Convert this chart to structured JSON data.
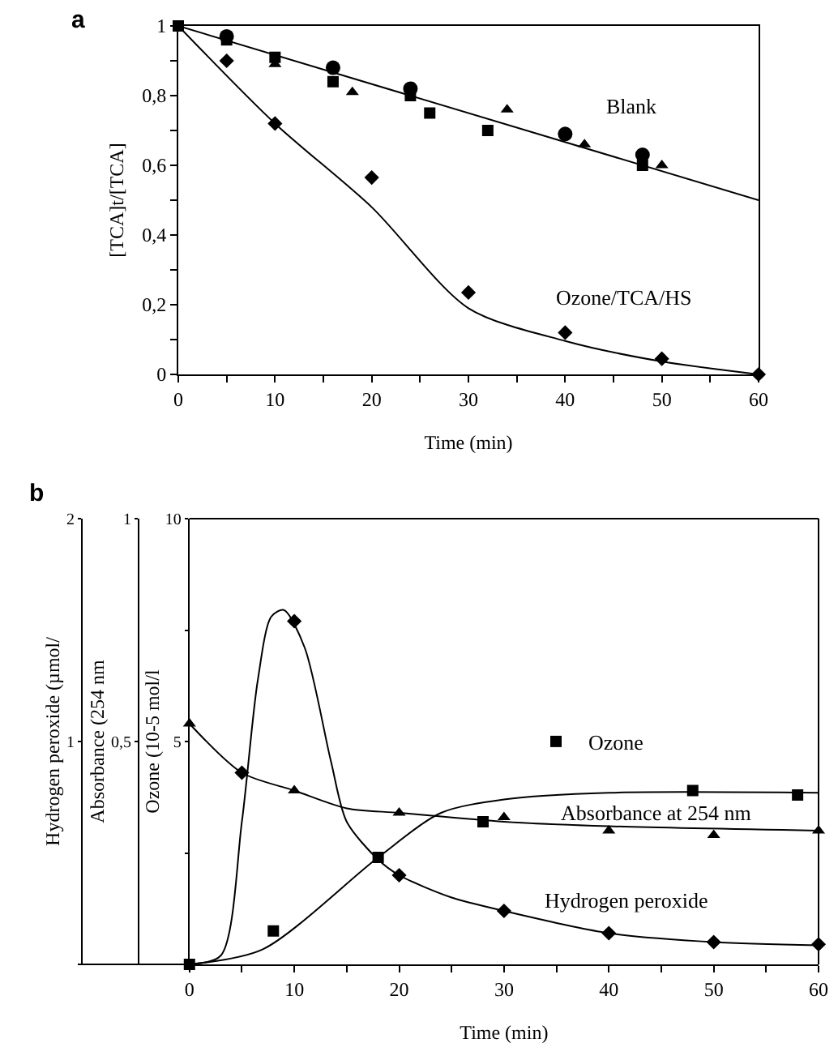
{
  "chart_data": [
    {
      "type": "scatter",
      "title": "a",
      "xlabel": "Time (min)",
      "ylabel": "[TCA]t/[TCA]",
      "xlim": [
        0,
        60
      ],
      "xticks": [
        0,
        {
          "value": 5,
          "label": null
        },
        10,
        {
          "value": 15,
          "label": null
        },
        20,
        {
          "value": 25,
          "label": null
        },
        30,
        {
          "value": 35,
          "label": null
        },
        40,
        {
          "value": 45,
          "label": null
        },
        50,
        {
          "value": 55,
          "label": null
        },
        60
      ],
      "ylim": [
        0,
        1
      ],
      "yticks": [
        0,
        {
          "value": 0.1,
          "label": null
        },
        {
          "value": 0.2,
          "label": "0,2"
        },
        {
          "value": 0.3,
          "label": null
        },
        {
          "value": 0.4,
          "label": "0,4"
        },
        {
          "value": 0.5,
          "label": null
        },
        {
          "value": 0.6,
          "label": "0,6"
        },
        {
          "value": 0.7,
          "label": null
        },
        {
          "value": 0.8,
          "label": "0,8"
        },
        {
          "value": 0.9,
          "label": null
        },
        1
      ],
      "grid": false,
      "legend": false,
      "line_style": "solid",
      "series": [
        {
          "marker": "circle",
          "color": "#000000",
          "x": [
            5,
            16,
            24,
            40,
            48
          ],
          "values": [
            0.97,
            0.88,
            0.82,
            0.69,
            0.63
          ]
        },
        {
          "marker": "square",
          "color": "#000000",
          "x": [
            0,
            5,
            10,
            16,
            24,
            26,
            32,
            48
          ],
          "values": [
            1,
            0.96,
            0.91,
            0.84,
            0.8,
            0.75,
            0.7,
            0.6
          ]
        },
        {
          "marker": "triangle",
          "color": "#000000",
          "x": [
            10,
            18,
            34,
            42,
            50
          ],
          "values": [
            0.89,
            0.81,
            0.76,
            0.66,
            0.6
          ]
        },
        {
          "marker": "diamond",
          "color": "#000000",
          "x": [
            5,
            10,
            20,
            30,
            40,
            50,
            60
          ],
          "values": [
            0.9,
            0.72,
            0.565,
            0.235,
            0.12,
            0.045,
            0
          ]
        },
        {
          "type": "line",
          "marker": "none",
          "color": "#000000",
          "x": [
            0,
            60
          ],
          "values": [
            1,
            0.5
          ]
        },
        {
          "type": "line",
          "marker": "none",
          "color": "#000000",
          "x": [
            0,
            10,
            20,
            30,
            40,
            50,
            60
          ],
          "values": [
            1,
            0.72,
            0.48,
            0.19,
            0.096,
            0.037,
            0
          ]
        }
      ],
      "annotations": [
        "Blank",
        "Ozone/TCA/HS"
      ]
    },
    {
      "type": "scatter",
      "title": "b",
      "xlabel": "Time (min)",
      "ylabel": "Hydrogen peroxide (µmol/",
      "y2label": "Absorbance (254 nm",
      "y3label": "Ozone (10-5 mol/l",
      "xlim": [
        0,
        60
      ],
      "xticks": [
        0,
        {
          "value": 5,
          "label": null
        },
        10,
        {
          "value": 15,
          "label": null
        },
        20,
        {
          "value": 25,
          "label": null
        },
        30,
        {
          "value": 35,
          "label": null
        },
        40,
        {
          "value": 45,
          "label": null
        },
        50,
        {
          "value": 55,
          "label": null
        },
        60
      ],
      "ylim": [
        0,
        2
      ],
      "yticks": [
        {
          "value": 0,
          "label": null
        },
        1,
        2
      ],
      "y2lim": [
        0,
        1
      ],
      "y2ticks": [
        {
          "value": 0,
          "label": null
        },
        {
          "value": 0.5,
          "label": "0,5"
        },
        1
      ],
      "y3lim": [
        0,
        10
      ],
      "y3ticks": [
        {
          "value": 0,
          "label": null
        },
        {
          "value": 2.5,
          "label": null
        },
        5,
        {
          "value": 7.5,
          "label": null
        },
        10
      ],
      "grid": false,
      "legend": "right",
      "line_style": "solid",
      "series": [
        {
          "marker": "diamond",
          "color": "#000000",
          "x": [
            5,
            10,
            20,
            30,
            40,
            50,
            60
          ],
          "values": [
            0.86,
            1.54,
            0.4,
            0.24,
            0.14,
            0.1,
            0.09
          ]
        },
        {
          "type": "line",
          "marker": "none",
          "color": "#000000",
          "x": [
            0,
            3,
            5,
            6.5,
            7.8,
            9,
            11,
            13.5,
            15,
            18,
            20,
            25,
            30,
            40,
            50,
            60
          ],
          "values": [
            0,
            0.04,
            0.64,
            1.27,
            1.56,
            1.59,
            1.42,
            0.91,
            0.64,
            0.47,
            0.4,
            0.3,
            0.24,
            0.14,
            0.1,
            0.085
          ]
        },
        {
          "marker": "triangle",
          "color": "#000000",
          "axis": "y2",
          "x": [
            0,
            10,
            20,
            30,
            40,
            50,
            60
          ],
          "values": [
            0.54,
            0.39,
            0.34,
            0.33,
            0.3,
            0.29,
            0.3
          ]
        },
        {
          "type": "line",
          "marker": "none",
          "color": "#000000",
          "axis": "y2",
          "x": [
            0,
            5,
            10,
            15,
            20,
            30,
            40,
            60
          ],
          "values": [
            0.54,
            0.43,
            0.39,
            0.35,
            0.34,
            0.32,
            0.31,
            0.3
          ]
        },
        {
          "name": "Ozone",
          "marker": "square",
          "color": "#000000",
          "axis": "y3",
          "x": [
            0,
            8,
            18,
            28,
            48,
            58
          ],
          "values": [
            0,
            0.75,
            2.4,
            3.2,
            3.9,
            3.8
          ]
        },
        {
          "type": "line",
          "marker": "none",
          "color": "#000000",
          "axis": "y3",
          "x": [
            0,
            7,
            18,
            24,
            30,
            40,
            60
          ],
          "values": [
            0,
            0.34,
            2.4,
            3.4,
            3.7,
            3.85,
            3.85
          ]
        }
      ],
      "annotations": [
        "Absorbance at 254 nm",
        "Hydrogen peroxide"
      ]
    }
  ]
}
